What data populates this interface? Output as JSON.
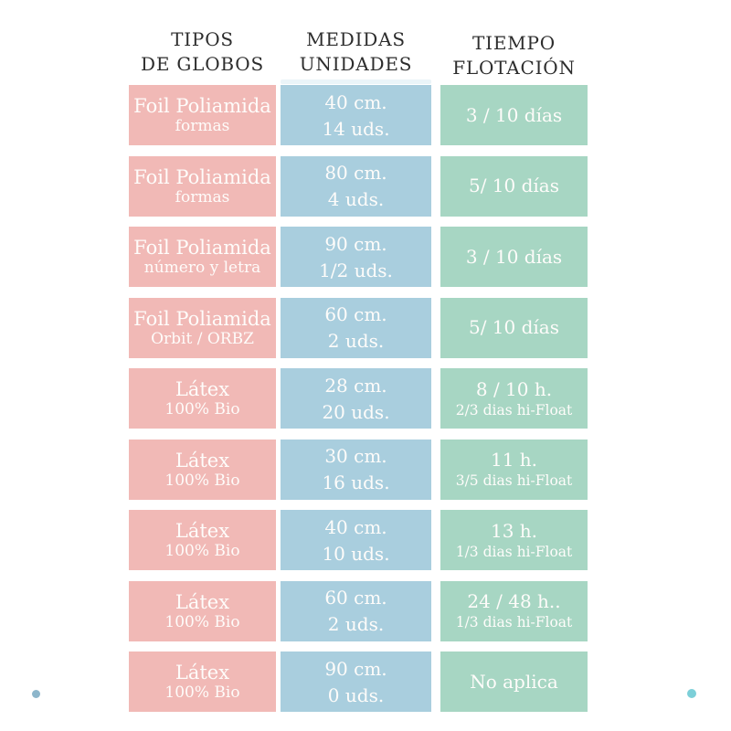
{
  "headers": [
    {
      "line1": "TIPOS",
      "line2": "DE GLOBOS"
    },
    {
      "line1": "MEDIDAS",
      "line2": "UNIDADES"
    },
    {
      "line1": "TIEMPO",
      "line2": "FLOTACIÓN"
    }
  ],
  "colors": {
    "type_bg": "#f1b9b6",
    "measure_bg": "#a9cede",
    "float_bg": "#a7d6c3",
    "header_text": "#2d2d2d",
    "cell_text": "#fefcfa",
    "dot_left": "#8db6cb",
    "dot_right": "#7ccfd8"
  },
  "rows": [
    {
      "type_main": "Foil Poliamida",
      "type_sub": "formas",
      "size": "40 cm.",
      "units": "14 uds.",
      "float_main": "3 / 10 días",
      "float_sub": ""
    },
    {
      "type_main": "Foil Poliamida",
      "type_sub": "formas",
      "size": "80 cm.",
      "units": "4 uds.",
      "float_main": "5/ 10 días",
      "float_sub": ""
    },
    {
      "type_main": "Foil Poliamida",
      "type_sub": "número y letra",
      "size": "90 cm.",
      "units": "1/2 uds.",
      "float_main": "3 / 10 días",
      "float_sub": ""
    },
    {
      "type_main": "Foil Poliamida",
      "type_sub": "Orbit / ORBZ",
      "size": "60 cm.",
      "units": "2 uds.",
      "float_main": "5/ 10 días",
      "float_sub": ""
    },
    {
      "type_main": "Látex",
      "type_sub": "100% Bio",
      "size": "28 cm.",
      "units": "20 uds.",
      "float_main": "8 / 10 h.",
      "float_sub": "2/3 dias hi-Float"
    },
    {
      "type_main": "Látex",
      "type_sub": "100% Bio",
      "size": "30 cm.",
      "units": "16 uds.",
      "float_main": "11 h.",
      "float_sub": "3/5 dias hi-Float"
    },
    {
      "type_main": "Látex",
      "type_sub": "100% Bio",
      "size": "40 cm.",
      "units": "10 uds.",
      "float_main": "13 h.",
      "float_sub": "1/3 dias hi-Float"
    },
    {
      "type_main": "Látex",
      "type_sub": "100% Bio",
      "size": "60 cm.",
      "units": "2 uds.",
      "float_main": "24 / 48 h..",
      "float_sub": "1/3 dias hi-Float"
    },
    {
      "type_main": "Látex",
      "type_sub": "100% Bio",
      "size": "90 cm.",
      "units": "0 uds.",
      "float_main": "No aplica",
      "float_sub": ""
    }
  ],
  "chart_data": {
    "type": "table",
    "columns": [
      "TIPOS DE GLOBOS",
      "MEDIDAS UNIDADES",
      "TIEMPO FLOTACIÓN"
    ],
    "rows": [
      [
        "Foil Poliamida formas",
        "40 cm. 14 uds.",
        "3 / 10 días"
      ],
      [
        "Foil Poliamida formas",
        "80 cm. 4 uds.",
        "5/ 10 días"
      ],
      [
        "Foil Poliamida número y letra",
        "90 cm. 1/2 uds.",
        "3 / 10 días"
      ],
      [
        "Foil Poliamida Orbit / ORBZ",
        "60 cm. 2 uds.",
        "5/ 10 días"
      ],
      [
        "Látex 100% Bio",
        "28 cm. 20 uds.",
        "8 / 10 h. 2/3 dias hi-Float"
      ],
      [
        "Látex 100% Bio",
        "30 cm. 16 uds.",
        "11 h. 3/5 dias hi-Float"
      ],
      [
        "Látex 100% Bio",
        "40 cm. 10 uds.",
        "13 h. 1/3 dias hi-Float"
      ],
      [
        "Látex 100% Bio",
        "60 cm. 2 uds.",
        "24 / 48 h.. 1/3 dias hi-Float"
      ],
      [
        "Látex 100% Bio",
        "90 cm. 0 uds.",
        "No aplica"
      ]
    ]
  }
}
